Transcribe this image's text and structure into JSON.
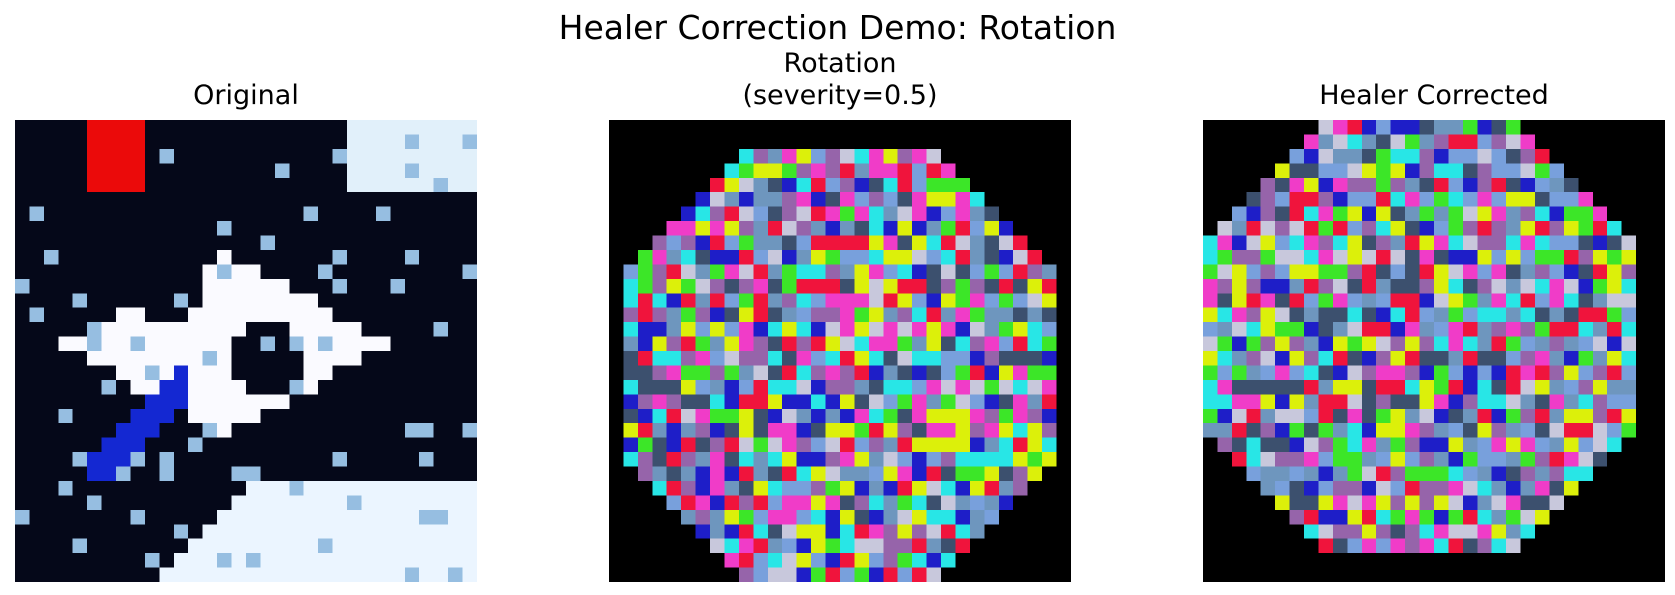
{
  "figure": {
    "suptitle": "Healer Correction Demo: Rotation"
  },
  "panels": [
    {
      "id": "original",
      "title_lines": [
        "Original"
      ]
    },
    {
      "id": "rotated",
      "title_lines": [
        "Rotation",
        "(severity=0.5)"
      ]
    },
    {
      "id": "corrected",
      "title_lines": [
        "Healer Corrected"
      ]
    }
  ]
}
